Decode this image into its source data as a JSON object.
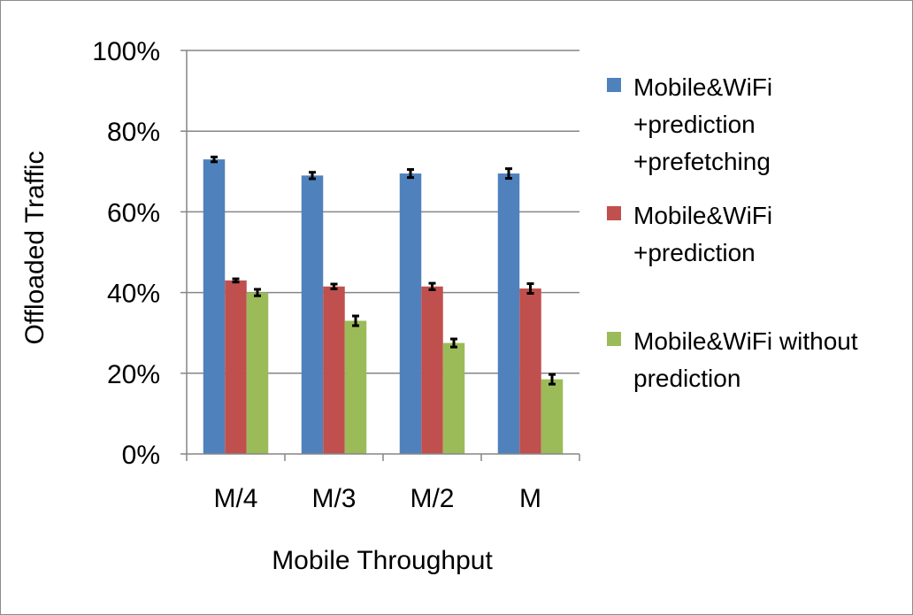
{
  "chart_data": {
    "type": "bar",
    "categories": [
      "M/4",
      "M/3",
      "M/2",
      "M"
    ],
    "series": [
      {
        "name": "Mobile&WiFi +prediction +prefetching",
        "legend_lines": [
          "Mobile&WiFi",
          "+prediction",
          "+prefetching"
        ],
        "color": "#4F81BD",
        "values": [
          73,
          69,
          69.5,
          69.5
        ],
        "error": [
          0.6,
          0.8,
          1.0,
          1.2
        ]
      },
      {
        "name": "Mobile&WiFi +prediction",
        "legend_lines": [
          "Mobile&WiFi",
          "+prediction"
        ],
        "color": "#C0504D",
        "values": [
          43,
          41.5,
          41.5,
          41
        ],
        "error": [
          0.4,
          0.6,
          0.8,
          1.2
        ]
      },
      {
        "name": "Mobile&WiFi without prediction",
        "legend_lines": [
          "Mobile&WiFi without",
          "prediction"
        ],
        "color": "#9BBB59",
        "values": [
          40,
          33,
          27.5,
          18.5
        ],
        "error": [
          0.8,
          1.2,
          1.0,
          1.2
        ]
      }
    ],
    "xlabel": "Mobile Throughput",
    "ylabel": "Offloaded Traffic",
    "ylim": [
      0,
      100
    ],
    "yticks": [
      0,
      20,
      40,
      60,
      80,
      100
    ],
    "ytick_labels": [
      "0%",
      "20%",
      "40%",
      "60%",
      "80%",
      "100%"
    ],
    "grid": true,
    "legend_position": "right"
  }
}
